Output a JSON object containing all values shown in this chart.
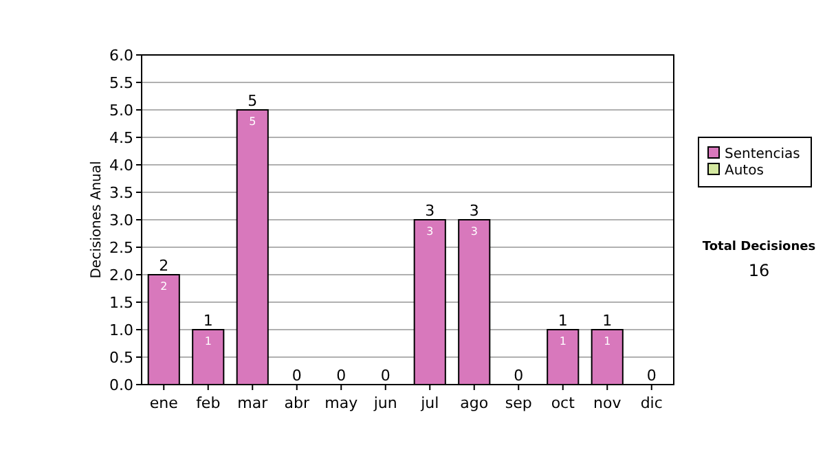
{
  "chart_data": {
    "type": "bar",
    "stacked": true,
    "ylabel": "Decisiones Anual",
    "categories": [
      "ene",
      "feb",
      "mar",
      "abr",
      "may",
      "jun",
      "jul",
      "ago",
      "sep",
      "oct",
      "nov",
      "dic"
    ],
    "series": [
      {
        "name": "Sentencias",
        "color": "#d878bc",
        "values": [
          2,
          1,
          5,
          0,
          0,
          0,
          3,
          3,
          0,
          1,
          1,
          0
        ],
        "value_labels": [
          "2",
          "1",
          "5",
          null,
          null,
          null,
          "3",
          "3",
          null,
          "1",
          "1",
          null
        ]
      },
      {
        "name": "Autos",
        "color": "#d4e8a0",
        "values": [
          0,
          0,
          0,
          0,
          0,
          0,
          0,
          0,
          0,
          0,
          0,
          0
        ]
      }
    ],
    "totals": [
      "2",
      "1",
      "5",
      "0",
      "0",
      "0",
      "3",
      "3",
      "0",
      "1",
      "1",
      "0"
    ],
    "ylim": [
      0,
      6
    ],
    "yticks": [
      {
        "value": 0,
        "label": "0.0"
      },
      {
        "value": 0.5,
        "label": "0.5"
      },
      {
        "value": 1,
        "label": "1.0"
      },
      {
        "value": 1.5,
        "label": "1.5"
      },
      {
        "value": 2,
        "label": "2.0"
      },
      {
        "value": 2.5,
        "label": "2.5"
      },
      {
        "value": 3,
        "label": "3.0"
      },
      {
        "value": 3.5,
        "label": "3.5"
      },
      {
        "value": 4,
        "label": "4.0"
      },
      {
        "value": 4.5,
        "label": "4.5"
      },
      {
        "value": 5,
        "label": "5.0"
      },
      {
        "value": 5.5,
        "label": "5.5"
      },
      {
        "value": 6,
        "label": "6.0"
      }
    ],
    "grid": "y",
    "legend": "right",
    "annotations": [
      "Total Decisiones",
      "16"
    ]
  }
}
